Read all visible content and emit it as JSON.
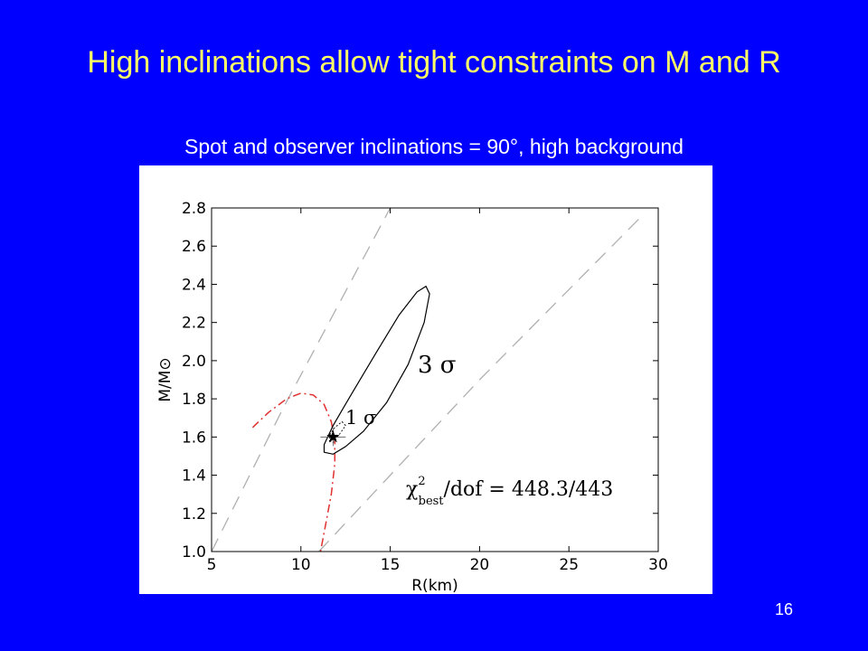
{
  "slide": {
    "title": "High inclinations allow tight constraints on M and R",
    "subtitle": "Spot and observer inclinations = 90°, high background",
    "page_number": "16"
  },
  "colors": {
    "background": "#0000FF",
    "title": "#FFFF66",
    "dash_dot_curve": "#E03030",
    "dashed_lines": "#B0B0B0",
    "contours": "#000000"
  },
  "chart_data": {
    "type": "scatter",
    "xlabel": "R(km)",
    "ylabel": "M/M⊙",
    "xlim": [
      5,
      30
    ],
    "ylim": [
      1.0,
      2.8
    ],
    "x_ticks": [
      5,
      10,
      15,
      20,
      25,
      30
    ],
    "y_ticks": [
      1.0,
      1.2,
      1.4,
      1.6,
      1.8,
      2.0,
      2.2,
      2.4,
      2.6,
      2.8
    ],
    "x_tick_labels": [
      "5",
      "10",
      "15",
      "20",
      "25",
      "30"
    ],
    "y_tick_labels": [
      "1.0",
      "1.2",
      "1.4",
      "1.6",
      "1.8",
      "2.0",
      "2.2",
      "2.4",
      "2.6",
      "2.8"
    ],
    "grid": false,
    "best_fit": {
      "R": 11.8,
      "M": 1.6,
      "marker": "star"
    },
    "contours": [
      {
        "label": "3σ",
        "points": [
          [
            11.3,
            1.52
          ],
          [
            11.8,
            1.51
          ],
          [
            12.5,
            1.55
          ],
          [
            13.5,
            1.63
          ],
          [
            14.8,
            1.78
          ],
          [
            16.0,
            1.98
          ],
          [
            16.9,
            2.2
          ],
          [
            17.2,
            2.35
          ],
          [
            17.0,
            2.39
          ],
          [
            16.5,
            2.36
          ],
          [
            15.5,
            2.24
          ],
          [
            14.2,
            2.04
          ],
          [
            12.8,
            1.82
          ],
          [
            11.8,
            1.66
          ],
          [
            11.3,
            1.56
          ],
          [
            11.3,
            1.52
          ]
        ]
      },
      {
        "label": "1σ",
        "points": [
          [
            11.6,
            1.58
          ],
          [
            11.8,
            1.57
          ],
          [
            12.2,
            1.62
          ],
          [
            12.5,
            1.66
          ],
          [
            12.3,
            1.68
          ],
          [
            11.9,
            1.65
          ],
          [
            11.6,
            1.61
          ],
          [
            11.6,
            1.58
          ]
        ]
      }
    ],
    "dash_dot_curve": {
      "points": [
        [
          7.3,
          1.65
        ],
        [
          8.2,
          1.73
        ],
        [
          9.2,
          1.8
        ],
        [
          10.0,
          1.83
        ],
        [
          10.7,
          1.82
        ],
        [
          11.3,
          1.77
        ],
        [
          11.7,
          1.68
        ],
        [
          11.9,
          1.58
        ],
        [
          11.9,
          1.46
        ],
        [
          11.7,
          1.3
        ],
        [
          11.4,
          1.15
        ],
        [
          11.1,
          1.0
        ]
      ]
    },
    "dashed_lines": [
      {
        "points": [
          [
            5.0,
            1.0
          ],
          [
            9.0,
            1.75
          ],
          [
            15.0,
            2.8
          ]
        ]
      },
      {
        "points": [
          [
            11.0,
            1.0
          ],
          [
            20.0,
            1.9
          ],
          [
            29.0,
            2.75
          ]
        ]
      }
    ],
    "annotations": {
      "sigma3": "3 σ",
      "sigma1": "1 σ",
      "chi_main": "χ",
      "chi_sup": "2",
      "chi_sub": "best",
      "chi_rest": "/dof = 448.3/443"
    }
  }
}
